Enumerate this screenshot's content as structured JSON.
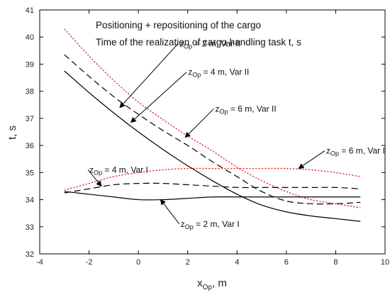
{
  "chart_data": {
    "type": "line",
    "title": "Positioning + repositioning of the cargo",
    "subtitle": "Time of the realization of cargo handling task  t, s",
    "xlabel": {
      "main": "x",
      "sub": "Op",
      "rest": ", m"
    },
    "ylabel": "t, s",
    "xlim": [
      -4,
      10
    ],
    "ylim": [
      32,
      41
    ],
    "xticks": [
      -4,
      -2,
      0,
      2,
      4,
      6,
      8,
      10
    ],
    "yticks": [
      32,
      33,
      34,
      35,
      36,
      37,
      38,
      39,
      40,
      41
    ],
    "grid": false,
    "series": [
      {
        "key": "z2_var2",
        "style": "solid",
        "color": "#000000",
        "x": [
          -3,
          -2,
          -1,
          0,
          1,
          2,
          3,
          4,
          5,
          6,
          7,
          8,
          9
        ],
        "y": [
          38.75,
          37.95,
          37.2,
          36.5,
          35.85,
          35.25,
          34.7,
          34.2,
          33.8,
          33.55,
          33.4,
          33.3,
          33.2
        ]
      },
      {
        "key": "z4_var2",
        "style": "dashed",
        "color": "#000000",
        "x": [
          -3,
          -2,
          -1,
          0,
          1,
          2,
          3,
          4,
          5,
          6,
          7,
          8,
          9
        ],
        "y": [
          39.35,
          38.55,
          37.8,
          37.15,
          36.55,
          36.0,
          35.4,
          34.85,
          34.3,
          33.95,
          33.85,
          33.85,
          33.9
        ]
      },
      {
        "key": "z6_var2",
        "style": "dotted",
        "color": "#e02020",
        "x": [
          -3,
          -2,
          -1,
          0,
          1,
          2,
          3,
          4,
          5,
          6,
          7,
          8,
          9
        ],
        "y": [
          40.3,
          39.3,
          38.4,
          37.6,
          36.95,
          36.35,
          35.8,
          35.2,
          34.7,
          34.3,
          34.0,
          33.85,
          33.7
        ]
      },
      {
        "key": "z2_var1",
        "style": "solid",
        "color": "#000000",
        "x": [
          -3,
          -2,
          -1,
          0,
          1,
          2,
          3,
          4,
          5,
          6,
          7,
          8,
          9
        ],
        "y": [
          34.3,
          34.2,
          34.1,
          34.0,
          34.0,
          34.05,
          34.1,
          34.1,
          34.1,
          34.1,
          34.1,
          34.1,
          34.1
        ]
      },
      {
        "key": "z4_var1",
        "style": "dashed",
        "color": "#000000",
        "x": [
          -3,
          -2,
          -1,
          0,
          1,
          2,
          3,
          4,
          5,
          6,
          7,
          8,
          9
        ],
        "y": [
          34.25,
          34.4,
          34.55,
          34.6,
          34.6,
          34.55,
          34.5,
          34.45,
          34.45,
          34.45,
          34.45,
          34.45,
          34.4
        ]
      },
      {
        "key": "z6_var1",
        "style": "dotted",
        "color": "#e02020",
        "x": [
          -3,
          -2,
          -1,
          0,
          1,
          2,
          3,
          4,
          5,
          6,
          7,
          8,
          9
        ],
        "y": [
          34.35,
          34.6,
          34.85,
          35.0,
          35.1,
          35.15,
          35.15,
          35.15,
          35.15,
          35.15,
          35.1,
          35.0,
          34.85
        ]
      }
    ],
    "annotations": [
      {
        "z": "z",
        "sub": "Op",
        "text": " = 2 m, Var II",
        "label_at": [
          1.55,
          39.65
        ],
        "arrow_to": [
          -0.75,
          37.4
        ]
      },
      {
        "z": "z",
        "sub": "Op",
        "text": " = 4 m, Var II",
        "label_at": [
          1.9,
          38.6
        ],
        "arrow_to": [
          -0.3,
          36.85
        ]
      },
      {
        "z": "z",
        "sub": "Op",
        "text": " = 6 m, Var II",
        "label_at": [
          3.0,
          37.25
        ],
        "arrow_to": [
          1.9,
          36.3
        ]
      },
      {
        "z": "z",
        "sub": "Op",
        "text": " = 6 m, Var I",
        "label_at": [
          7.5,
          35.7
        ],
        "arrow_to": [
          6.5,
          35.15
        ]
      },
      {
        "z": "z",
        "sub": "Op",
        "text": " = 4 m, Var I",
        "label_at": [
          -2.1,
          35.0
        ],
        "arrow_to": [
          -1.5,
          34.5
        ]
      },
      {
        "z": "z",
        "sub": "Op",
        "text": " = 2 m, Var I",
        "label_at": [
          1.6,
          33.0
        ],
        "arrow_to": [
          0.9,
          34.0
        ]
      }
    ]
  }
}
